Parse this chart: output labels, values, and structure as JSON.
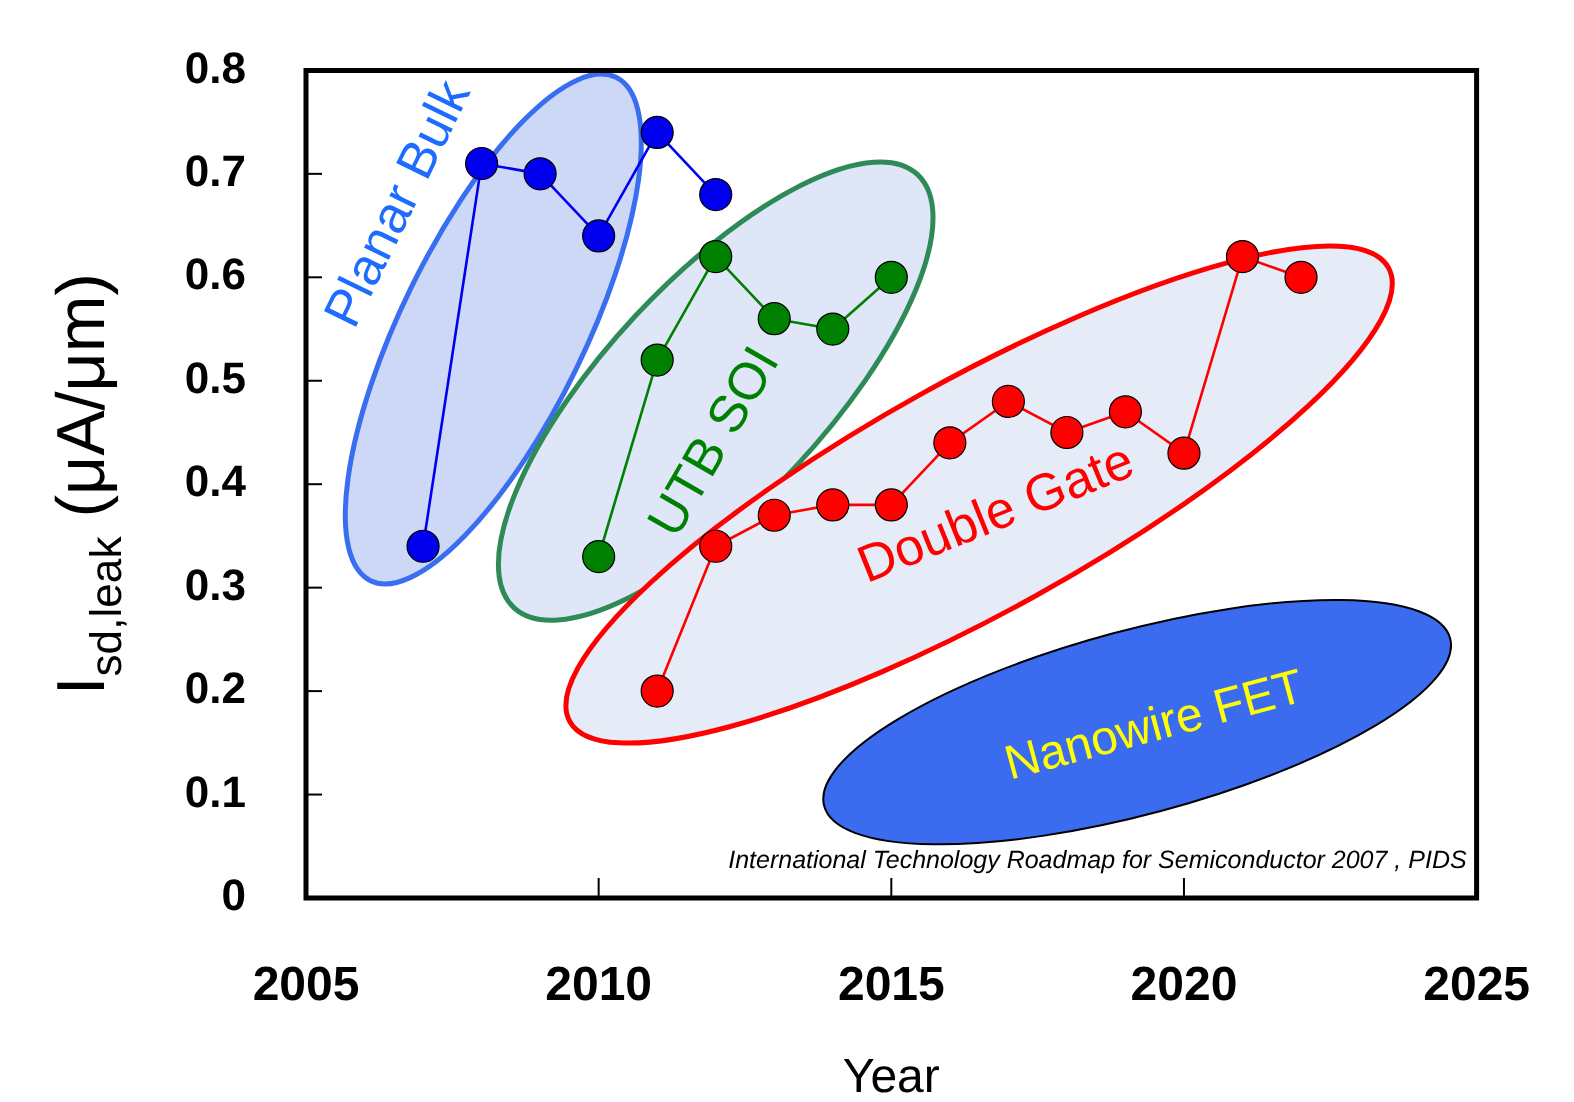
{
  "chart_data": {
    "type": "line",
    "xlabel": "Year",
    "ylabel": "I$_{sd,leak}$ (μA/μm)",
    "xlim": [
      2005,
      2025
    ],
    "xticks": [
      2005,
      2010,
      2015,
      2020,
      2025
    ],
    "ylim": [
      0,
      0.8
    ],
    "yticks": [
      0,
      0.1,
      0.2,
      0.3,
      0.4,
      0.5,
      0.6,
      0.7,
      0.8
    ],
    "marker": "circle",
    "line_style": "solid",
    "annotations": [
      "Nanowire FET",
      "International Technology Roadmap for Semiconductor 2007 , PIDS"
    ],
    "series": [
      {
        "name": "Planar Bulk",
        "color": "#0000ee",
        "x": [
          2007,
          2008,
          2009,
          2010,
          2011,
          2012
        ],
        "values": [
          0.34,
          0.71,
          0.7,
          0.64,
          0.74,
          0.68
        ]
      },
      {
        "name": "UTB SOI",
        "color": "#008000",
        "x": [
          2010,
          2011,
          2012,
          2013,
          2014,
          2015
        ],
        "values": [
          0.33,
          0.52,
          0.62,
          0.56,
          0.55,
          0.6
        ]
      },
      {
        "name": "Double Gate",
        "color": "#ff0000",
        "x": [
          2011,
          2012,
          2013,
          2014,
          2015,
          2016,
          2017,
          2018,
          2019,
          2020,
          2021,
          2022
        ],
        "values": [
          0.2,
          0.34,
          0.37,
          0.38,
          0.38,
          0.44,
          0.48,
          0.45,
          0.47,
          0.43,
          0.62,
          0.6
        ]
      }
    ]
  }
}
